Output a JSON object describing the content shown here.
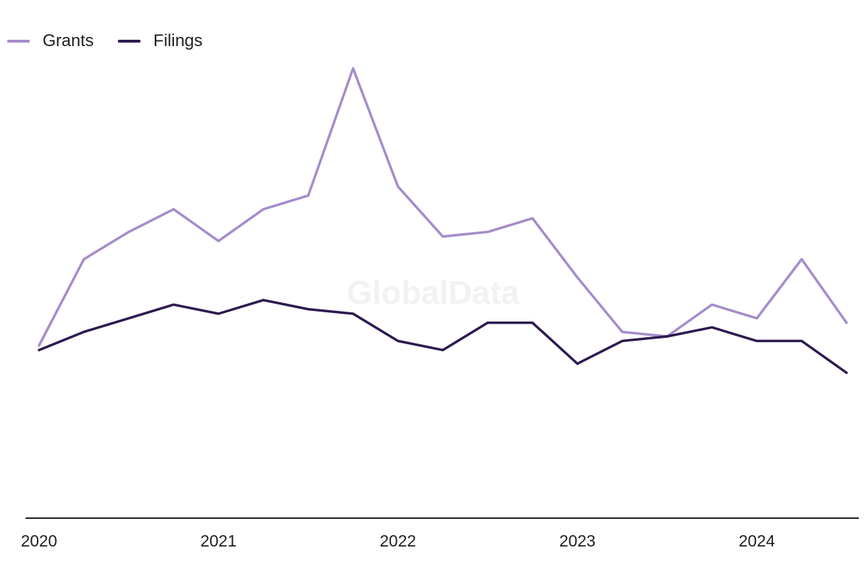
{
  "legend": [
    {
      "label": "Grants",
      "color": "#a58cca"
    },
    {
      "label": "Filings",
      "color": "#2e1a4f"
    }
  ],
  "watermark": "GlobalData",
  "chart_data": {
    "type": "line",
    "x_tick_labels": [
      "2020",
      "2021",
      "2022",
      "2023",
      "2024"
    ],
    "x": [
      "2020 Q1",
      "2020 Q2",
      "2020 Q3",
      "2020 Q4",
      "2021 Q1",
      "2021 Q2",
      "2021 Q3",
      "2021 Q4",
      "2022 Q1",
      "2022 Q2",
      "2022 Q3",
      "2022 Q4",
      "2023 Q1",
      "2023 Q2",
      "2023 Q3",
      "2023 Q4",
      "2024 Q1",
      "2024 Q2",
      "2024 Q3"
    ],
    "series": [
      {
        "name": "Grants",
        "color": "#a58cca",
        "values": [
          38,
          57,
          63,
          68,
          61,
          68,
          71,
          99,
          73,
          62,
          63,
          66,
          53,
          41,
          40,
          47,
          44,
          57,
          43
        ]
      },
      {
        "name": "Filings",
        "color": "#2e1a4f",
        "values": [
          37,
          41,
          44,
          47,
          45,
          48,
          46,
          45,
          39,
          37,
          43,
          43,
          34,
          39,
          40,
          42,
          39,
          39,
          32
        ]
      }
    ],
    "xlabel": "",
    "ylabel": "",
    "ylim": [
      0,
      105
    ],
    "grid": false,
    "legend_position": "top-left"
  }
}
